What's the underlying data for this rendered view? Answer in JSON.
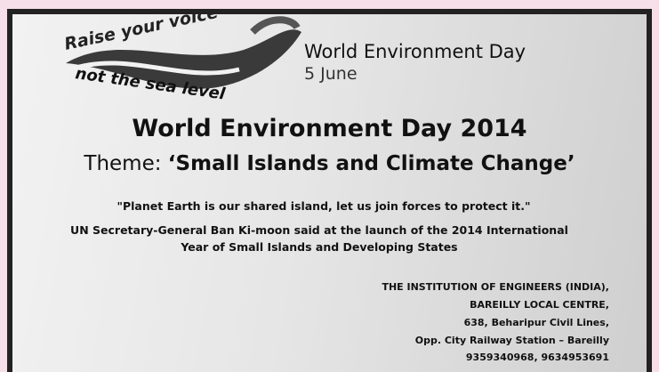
{
  "logo": {
    "line1": "Raise your voice",
    "line2": "not the sea level"
  },
  "header": {
    "title": "World Environment Day",
    "date": "5 June"
  },
  "main": {
    "title": "World Environment Day 2014",
    "theme_label": "Theme:",
    "theme": "‘Small Islands and Climate Change’"
  },
  "quote": {
    "text": "\"Planet Earth is our shared island, let us join forces to protect it.\"",
    "attribution": [
      "UN Secretary-General Ban Ki-moon said at the launch of the 2014 International",
      "Year of Small Islands and Developing States"
    ]
  },
  "address": {
    "lines": [
      "THE INSTITUTION OF ENGINEERS (INDIA),",
      "BAREILLY LOCAL CENTRE,",
      "638, Beharipur Civil Lines,",
      "Opp. City Railway Station – Bareilly",
      "9359340968, 9634953691"
    ]
  }
}
